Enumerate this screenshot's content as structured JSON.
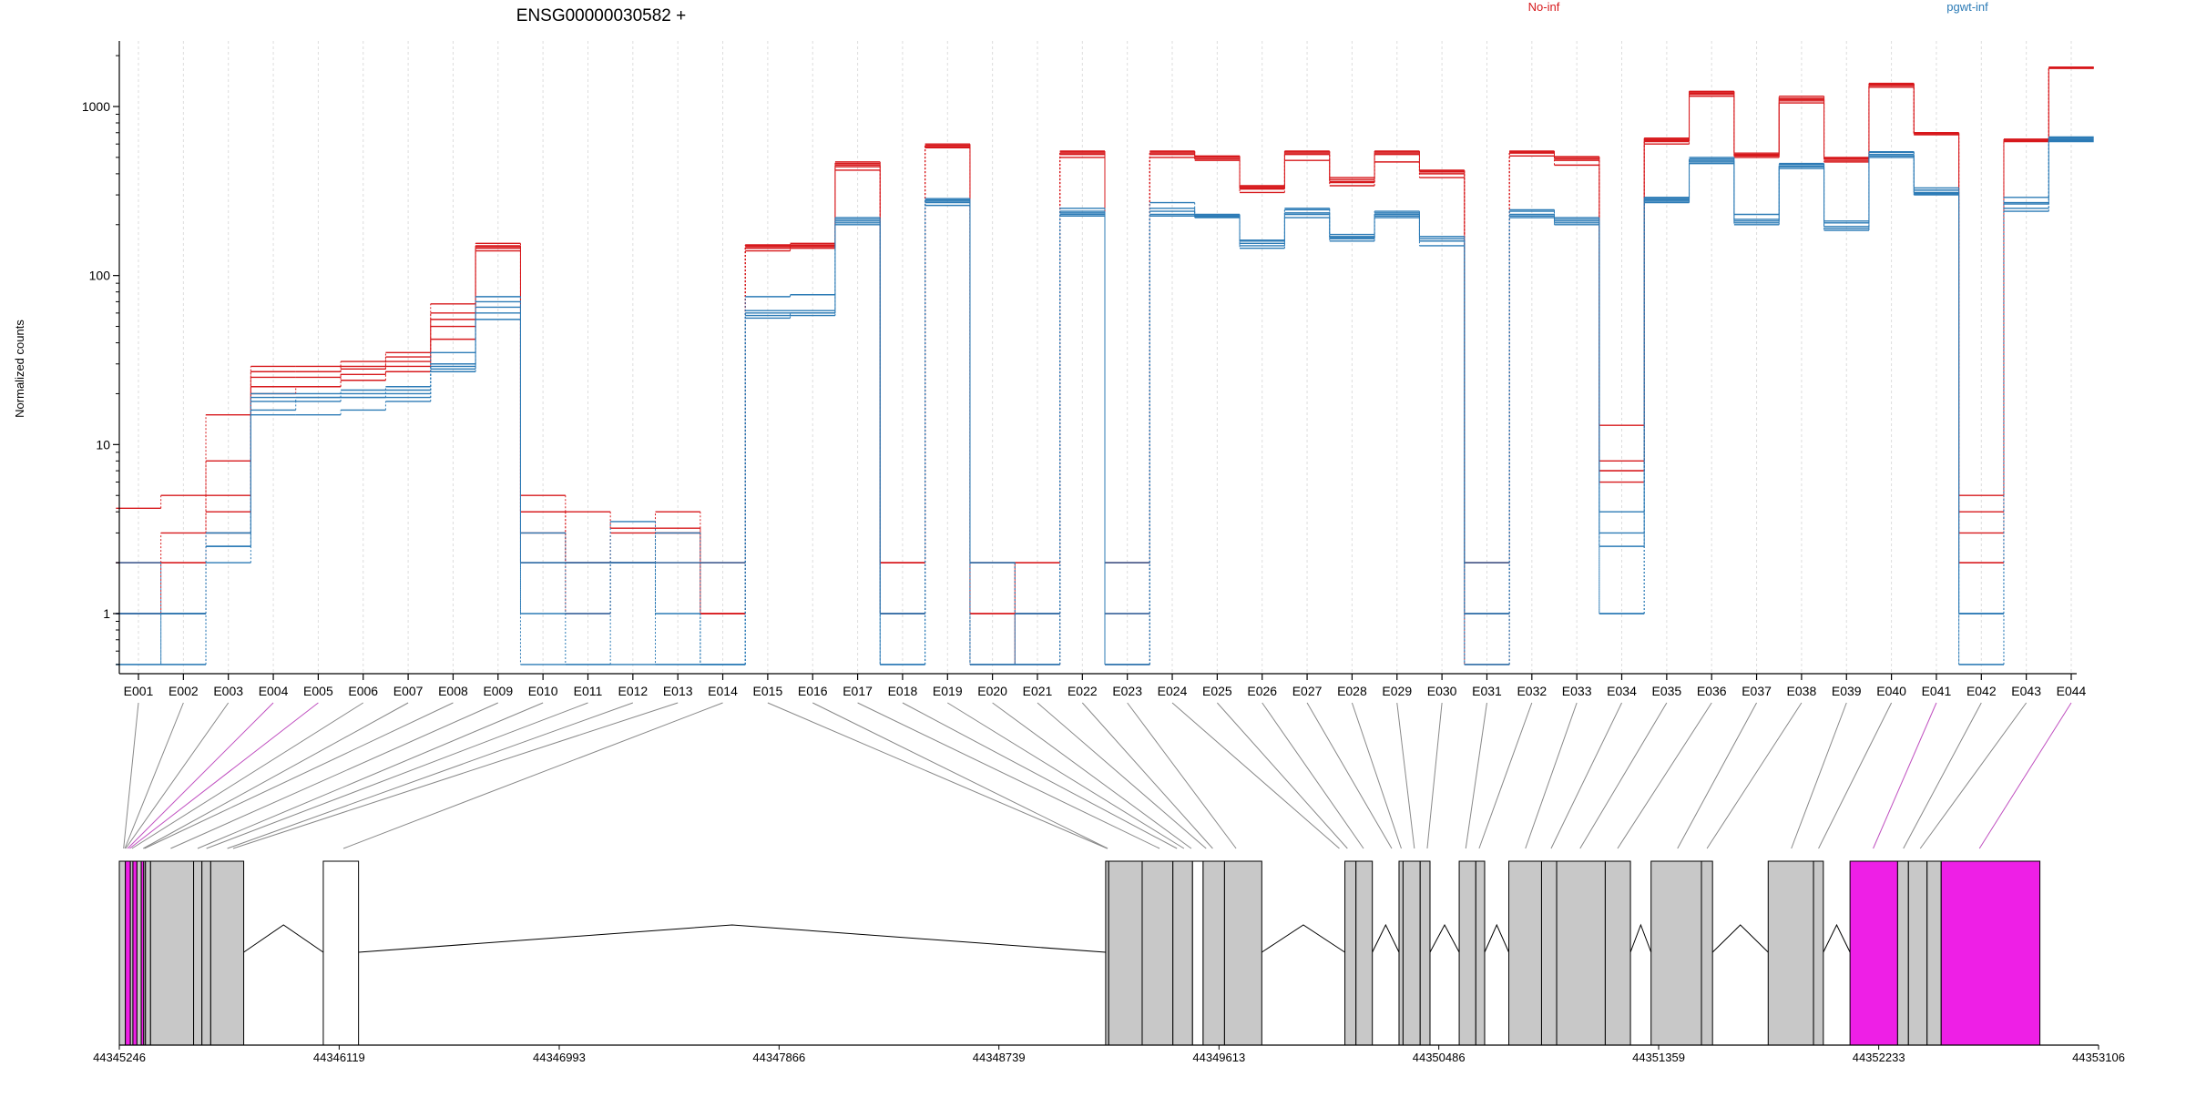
{
  "chart_data": {
    "type": "line",
    "title": "ENSG00000030582 +",
    "ylabel": "Normalized counts",
    "yscale": "log",
    "ylim": [
      0.5,
      2500
    ],
    "yticks": [
      "1",
      "10",
      "100",
      "1000"
    ],
    "categories": [
      "E001",
      "E002",
      "E003",
      "E004",
      "E005",
      "E006",
      "E007",
      "E008",
      "E009",
      "E010",
      "E011",
      "E012",
      "E013",
      "E014",
      "E015",
      "E016",
      "E017",
      "E018",
      "E019",
      "E020",
      "E021",
      "E022",
      "E023",
      "E024",
      "E025",
      "E026",
      "E027",
      "E028",
      "E029",
      "E030",
      "E031",
      "E032",
      "E033",
      "E034",
      "E035",
      "E036",
      "E037",
      "E038",
      "E039",
      "E040",
      "E041",
      "E042",
      "E043",
      "E044"
    ],
    "legend": [
      {
        "label": "No-inf",
        "color": "#d7191c"
      },
      {
        "label": "pgwt-inf",
        "color": "#2c7bb6"
      }
    ],
    "groups": [
      {
        "name": "No-inf",
        "color": "#d7191c",
        "samples": [
          [
            4.2,
            5,
            15,
            29,
            29,
            31,
            33,
            50,
            150,
            5,
            4,
            3.2,
            3.2,
            1,
            150,
            155,
            460,
            2,
            600,
            1,
            1,
            540,
            2,
            545,
            510,
            340,
            545,
            380,
            545,
            420,
            2,
            545,
            505,
            13,
            640,
            1230,
            530,
            1150,
            500,
            1370,
            700,
            5,
            640,
            1700
          ],
          [
            2,
            3,
            8,
            27,
            27,
            28,
            31,
            55,
            140,
            4,
            2,
            2,
            2,
            1,
            140,
            145,
            420,
            2,
            570,
            2,
            1,
            520,
            2,
            500,
            480,
            310,
            480,
            340,
            470,
            380,
            2,
            510,
            450,
            8,
            600,
            1150,
            500,
            1050,
            470,
            1300,
            680,
            4,
            620,
            1680
          ],
          [
            1,
            2,
            5,
            25,
            25,
            26,
            27,
            42,
            145,
            2,
            2,
            2,
            4,
            2,
            145,
            150,
            440,
            1,
            580,
            0.5,
            2,
            500,
            1,
            520,
            490,
            325,
            520,
            360,
            520,
            400,
            0.5,
            530,
            480,
            7,
            620,
            1180,
            510,
            1080,
            490,
            1330,
            690,
            3,
            630,
            1690
          ],
          [
            1,
            1,
            3,
            22,
            22,
            24,
            29,
            60,
            155,
            3,
            1,
            3,
            3,
            2,
            152,
            152,
            470,
            1,
            590,
            1,
            0.5,
            530,
            0.5,
            540,
            500,
            330,
            540,
            370,
            540,
            410,
            1,
            540,
            500,
            6,
            650,
            1200,
            520,
            1120,
            480,
            1350,
            695,
            2,
            640,
            1700
          ],
          [
            2,
            2,
            4,
            20,
            22,
            29,
            35,
            68,
            148,
            4,
            2,
            2,
            3,
            1,
            148,
            148,
            450,
            2,
            575,
            2,
            2,
            545,
            2,
            530,
            505,
            335,
            530,
            355,
            530,
            415,
            2,
            535,
            490,
            7,
            630,
            1220,
            515,
            1100,
            495,
            1360,
            685,
            2,
            635,
            1710
          ]
        ]
      },
      {
        "name": "pgwt-inf",
        "color": "#2c7bb6",
        "samples": [
          [
            2,
            1,
            2.5,
            18,
            19,
            20,
            20,
            28,
            60,
            3,
            2,
            2,
            3,
            0.5,
            60,
            60,
            210,
            1,
            280,
            2,
            1,
            240,
            2,
            270,
            230,
            160,
            250,
            175,
            240,
            170,
            2,
            240,
            220,
            4,
            290,
            500,
            230,
            460,
            210,
            540,
            330,
            1,
            290,
            660
          ],
          [
            1,
            0.5,
            3,
            16,
            18,
            19,
            19,
            27,
            55,
            2,
            1,
            3.5,
            1,
            0.5,
            56,
            58,
            200,
            0.5,
            260,
            0.5,
            0.5,
            230,
            0.5,
            250,
            220,
            150,
            230,
            165,
            230,
            160,
            1,
            230,
            210,
            3,
            270,
            480,
            210,
            440,
            190,
            520,
            310,
            0.5,
            270,
            640
          ],
          [
            0.5,
            1,
            2,
            15,
            15,
            16,
            18,
            30,
            70,
            1,
            0.5,
            2,
            2,
            2,
            58,
            60,
            205,
            0.5,
            270,
            2,
            0.5,
            225,
            0.5,
            230,
            225,
            145,
            220,
            170,
            225,
            150,
            0.5,
            220,
            205,
            1,
            280,
            460,
            200,
            430,
            195,
            500,
            300,
            1,
            250,
            620
          ],
          [
            1,
            1,
            3,
            20,
            20,
            21,
            22,
            35,
            75,
            2,
            2,
            2,
            0.5,
            0.5,
            75,
            77,
            215,
            1,
            285,
            0.5,
            1,
            250,
            1,
            240,
            228,
            162,
            245,
            168,
            235,
            165,
            1,
            245,
            215,
            2.5,
            285,
            490,
            215,
            455,
            205,
            535,
            320,
            1,
            265,
            650
          ],
          [
            0.5,
            0.5,
            2.5,
            19,
            19,
            19,
            21,
            29,
            65,
            0.5,
            0.5,
            0.5,
            0.5,
            0.5,
            62,
            62,
            220,
            0.5,
            275,
            0.5,
            0.5,
            235,
            0.5,
            225,
            222,
            155,
            235,
            160,
            220,
            160,
            0.5,
            225,
            200,
            1,
            275,
            470,
            205,
            445,
            185,
            510,
            305,
            0.5,
            240,
            630
          ]
        ]
      }
    ],
    "coordinate_ticks": [
      "44345246",
      "44346119",
      "44346993",
      "44347866",
      "44348739",
      "44349613",
      "44350486",
      "44351359",
      "44352233",
      "44353106"
    ],
    "gene_model": {
      "coord_range": [
        44345246,
        44353106
      ],
      "exon_fill": "#c8c8c8",
      "highlight_fill": "#ee1fe6",
      "exons": [
        {
          "start": 44345246,
          "end": 44345270,
          "highlight": false
        },
        {
          "start": 44345270,
          "end": 44345290,
          "highlight": true
        },
        {
          "start": 44345290,
          "end": 44345300,
          "highlight": false
        },
        {
          "start": 44345300,
          "end": 44345316,
          "highlight": true
        },
        {
          "start": 44345316,
          "end": 44345333,
          "highlight": false
        },
        {
          "start": 44345333,
          "end": 44345343,
          "highlight": true
        },
        {
          "start": 44345343,
          "end": 44345350,
          "highlight": false
        },
        {
          "start": 44345350,
          "end": 44345370,
          "highlight": false
        },
        {
          "start": 44345370,
          "end": 44345541,
          "highlight": false
        },
        {
          "start": 44345541,
          "end": 44345574,
          "highlight": false
        },
        {
          "start": 44345574,
          "end": 44345609,
          "highlight": false
        },
        {
          "start": 44345609,
          "end": 44345740,
          "highlight": false
        },
        {
          "start": 44346056,
          "end": 44346196,
          "highlight": false,
          "blank": true
        },
        {
          "start": 44349163,
          "end": 44349175,
          "highlight": false
        },
        {
          "start": 44349175,
          "end": 44349308,
          "highlight": false
        },
        {
          "start": 44349308,
          "end": 44349430,
          "highlight": false
        },
        {
          "start": 44349430,
          "end": 44349508,
          "highlight": false
        },
        {
          "start": 44349508,
          "end": 44349550,
          "highlight": false,
          "blank": true
        },
        {
          "start": 44349550,
          "end": 44349635,
          "highlight": false
        },
        {
          "start": 44349635,
          "end": 44349783,
          "highlight": false
        },
        {
          "start": 44350113,
          "end": 44350157,
          "highlight": false
        },
        {
          "start": 44350157,
          "end": 44350222,
          "highlight": false
        },
        {
          "start": 44350328,
          "end": 44350344,
          "highlight": false
        },
        {
          "start": 44350344,
          "end": 44350412,
          "highlight": false
        },
        {
          "start": 44350412,
          "end": 44350451,
          "highlight": false
        },
        {
          "start": 44350567,
          "end": 44350633,
          "highlight": false
        },
        {
          "start": 44350633,
          "end": 44350668,
          "highlight": false
        },
        {
          "start": 44350764,
          "end": 44350894,
          "highlight": false
        },
        {
          "start": 44350894,
          "end": 44350954,
          "highlight": false
        },
        {
          "start": 44350954,
          "end": 44351147,
          "highlight": false
        },
        {
          "start": 44351147,
          "end": 44351247,
          "highlight": false
        },
        {
          "start": 44351329,
          "end": 44351529,
          "highlight": false
        },
        {
          "start": 44351529,
          "end": 44351573,
          "highlight": false
        },
        {
          "start": 44351794,
          "end": 44351974,
          "highlight": false
        },
        {
          "start": 44351974,
          "end": 44352013,
          "highlight": false
        },
        {
          "start": 44352119,
          "end": 44352308,
          "highlight": true
        },
        {
          "start": 44352308,
          "end": 44352351,
          "highlight": false
        },
        {
          "start": 44352351,
          "end": 44352425,
          "highlight": false
        },
        {
          "start": 44352425,
          "end": 44352481,
          "highlight": false
        },
        {
          "start": 44352481,
          "end": 44352873,
          "highlight": true
        }
      ],
      "mapping": [
        {
          "exon": "E001",
          "coord": 44345263,
          "color": "#888888"
        },
        {
          "exon": "E002",
          "coord": 44345268,
          "color": "#888888"
        },
        {
          "exon": "E003",
          "coord": 44345271,
          "color": "#888888"
        },
        {
          "exon": "E004",
          "coord": 44345279,
          "color": "#c050c0"
        },
        {
          "exon": "E005",
          "coord": 44345287,
          "color": "#c050c0"
        },
        {
          "exon": "E006",
          "coord": 44345296,
          "color": "#888888"
        },
        {
          "exon": "E007",
          "coord": 44345341,
          "color": "#888888"
        },
        {
          "exon": "E008",
          "coord": 44345346,
          "color": "#888888"
        },
        {
          "exon": "E009",
          "coord": 44345450,
          "color": "#888888"
        },
        {
          "exon": "E010",
          "coord": 44345557,
          "color": "#888888"
        },
        {
          "exon": "E011",
          "coord": 44345592,
          "color": "#888888"
        },
        {
          "exon": "E012",
          "coord": 44345675,
          "color": "#888888"
        },
        {
          "exon": "E013",
          "coord": 44345698,
          "color": "#888888"
        },
        {
          "exon": "E014",
          "coord": 44346136,
          "color": "#888888"
        },
        {
          "exon": "E015",
          "coord": 44349169,
          "color": "#888888"
        },
        {
          "exon": "E016",
          "coord": 44349171,
          "color": "#888888"
        },
        {
          "exon": "E017",
          "coord": 44349377,
          "color": "#888888"
        },
        {
          "exon": "E018",
          "coord": 44349446,
          "color": "#888888"
        },
        {
          "exon": "E019",
          "coord": 44349474,
          "color": "#888888"
        },
        {
          "exon": "E020",
          "coord": 44349503,
          "color": "#888888"
        },
        {
          "exon": "E021",
          "coord": 44349562,
          "color": "#888888"
        },
        {
          "exon": "E022",
          "coord": 44349588,
          "color": "#888888"
        },
        {
          "exon": "E023",
          "coord": 44349681,
          "color": "#888888"
        },
        {
          "exon": "E024",
          "coord": 44350091,
          "color": "#888888"
        },
        {
          "exon": "E025",
          "coord": 44350123,
          "color": "#888888"
        },
        {
          "exon": "E026",
          "coord": 44350187,
          "color": "#888888"
        },
        {
          "exon": "E027",
          "coord": 44350299,
          "color": "#888888"
        },
        {
          "exon": "E028",
          "coord": 44350337,
          "color": "#888888"
        },
        {
          "exon": "E029",
          "coord": 44350389,
          "color": "#888888"
        },
        {
          "exon": "E030",
          "coord": 44350440,
          "color": "#888888"
        },
        {
          "exon": "E031",
          "coord": 44350593,
          "color": "#888888"
        },
        {
          "exon": "E032",
          "coord": 44350646,
          "color": "#888888"
        },
        {
          "exon": "E033",
          "coord": 44350830,
          "color": "#888888"
        },
        {
          "exon": "E034",
          "coord": 44350932,
          "color": "#888888"
        },
        {
          "exon": "E035",
          "coord": 44351047,
          "color": "#888888"
        },
        {
          "exon": "E036",
          "coord": 44351196,
          "color": "#888888"
        },
        {
          "exon": "E037",
          "coord": 44351434,
          "color": "#888888"
        },
        {
          "exon": "E038",
          "coord": 44351551,
          "color": "#888888"
        },
        {
          "exon": "E039",
          "coord": 44351886,
          "color": "#888888"
        },
        {
          "exon": "E040",
          "coord": 44351994,
          "color": "#888888"
        },
        {
          "exon": "E041",
          "coord": 44352211,
          "color": "#c050c0"
        },
        {
          "exon": "E042",
          "coord": 44352331,
          "color": "#888888"
        },
        {
          "exon": "E043",
          "coord": 44352398,
          "color": "#888888"
        },
        {
          "exon": "E044",
          "coord": 44352633,
          "color": "#c050c0"
        }
      ]
    },
    "grid": false,
    "legend_placement": "top"
  }
}
